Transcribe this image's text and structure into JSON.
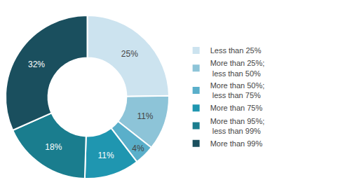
{
  "chart_data": {
    "type": "pie",
    "categories": [
      "Less than 25%",
      "More than 25%;\n less than 50%",
      "More than 50%;\n less than 75%",
      "More than 75%",
      "More than 95%;\n less than 99%",
      "More than 99%"
    ],
    "values": [
      25,
      11,
      4,
      11,
      18,
      32
    ],
    "value_labels": [
      "25%",
      "11%",
      "4%",
      "11%",
      "18%",
      "32%"
    ],
    "colors": [
      "#cce3ef",
      "#8dc4d8",
      "#5aafca",
      "#1f96b0",
      "#1a7d8e",
      "#1a4f5e"
    ],
    "data_labels": true,
    "legend": "right"
  }
}
